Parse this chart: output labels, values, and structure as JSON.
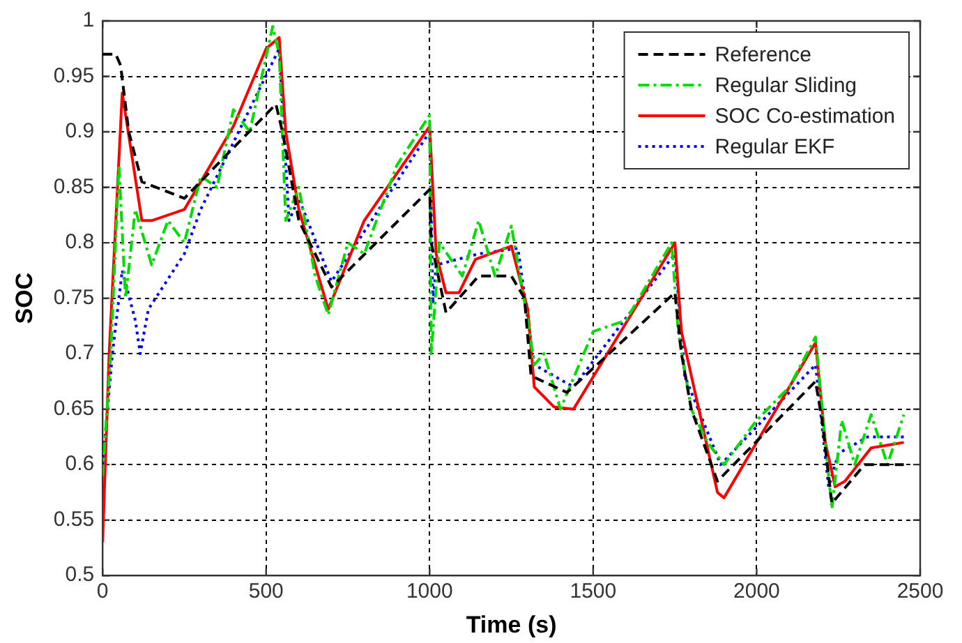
{
  "chart_data": {
    "type": "line",
    "xlabel": "Time (s)",
    "ylabel": "SOC",
    "xlim": [
      0,
      2500
    ],
    "xticks": [
      0,
      500,
      1000,
      1500,
      2000,
      2500
    ],
    "ylim": [
      0.5,
      1
    ],
    "yticks": [
      0.5,
      0.55,
      0.6,
      0.65,
      0.7,
      0.75,
      0.8,
      0.85,
      0.9,
      0.95,
      1
    ],
    "grid": true,
    "legend": "top right",
    "marker": "none",
    "series": [
      {
        "name": "Reference",
        "color": "#000000",
        "line_style": "dashed",
        "x": [
          0,
          40,
          55,
          80,
          120,
          250,
          530,
          550,
          600,
          700,
          1000,
          1005,
          1050,
          1150,
          1250,
          1290,
          1310,
          1420,
          1750,
          1770,
          1800,
          1880,
          2180,
          2200,
          2230,
          2330,
          2450
        ],
        "values": [
          0.97,
          0.97,
          0.96,
          0.9,
          0.855,
          0.84,
          0.925,
          0.9,
          0.82,
          0.76,
          0.848,
          0.8,
          0.737,
          0.77,
          0.77,
          0.75,
          0.68,
          0.665,
          0.755,
          0.7,
          0.65,
          0.585,
          0.675,
          0.64,
          0.565,
          0.6,
          0.6
        ]
      },
      {
        "name": "Regular Sliding",
        "color": "#00dd00",
        "line_style": "dashdot",
        "x": [
          0,
          25,
          50,
          70,
          100,
          150,
          200,
          250,
          300,
          350,
          400,
          450,
          520,
          540,
          560,
          600,
          650,
          690,
          750,
          800,
          900,
          1000,
          1005,
          1030,
          1100,
          1150,
          1200,
          1250,
          1300,
          1320,
          1350,
          1400,
          1500,
          1600,
          1700,
          1740,
          1760,
          1800,
          1850,
          1900,
          2000,
          2100,
          2180,
          2210,
          2230,
          2260,
          2300,
          2350,
          2400,
          2450
        ],
        "values": [
          0.59,
          0.7,
          0.87,
          0.75,
          0.83,
          0.78,
          0.82,
          0.8,
          0.86,
          0.85,
          0.92,
          0.9,
          0.995,
          0.97,
          0.82,
          0.85,
          0.77,
          0.735,
          0.8,
          0.79,
          0.87,
          0.915,
          0.7,
          0.8,
          0.77,
          0.82,
          0.77,
          0.815,
          0.73,
          0.69,
          0.7,
          0.65,
          0.72,
          0.73,
          0.78,
          0.8,
          0.72,
          0.65,
          0.62,
          0.6,
          0.64,
          0.67,
          0.715,
          0.62,
          0.56,
          0.64,
          0.6,
          0.645,
          0.6,
          0.645
        ]
      },
      {
        "name": "SOC Co-estimation",
        "color": "#ff0000",
        "line_style": "solid",
        "x": [
          0,
          20,
          60,
          120,
          150,
          250,
          400,
          500,
          540,
          560,
          600,
          690,
          800,
          1000,
          1020,
          1050,
          1090,
          1140,
          1250,
          1300,
          1320,
          1380,
          1440,
          1750,
          1770,
          1880,
          1900,
          2180,
          2210,
          2240,
          2270,
          2350,
          2450
        ],
        "values": [
          0.53,
          0.7,
          0.935,
          0.82,
          0.82,
          0.83,
          0.905,
          0.975,
          0.985,
          0.9,
          0.83,
          0.74,
          0.82,
          0.905,
          0.79,
          0.755,
          0.755,
          0.785,
          0.797,
          0.74,
          0.67,
          0.652,
          0.65,
          0.8,
          0.72,
          0.575,
          0.57,
          0.71,
          0.62,
          0.58,
          0.585,
          0.615,
          0.62
        ]
      },
      {
        "name": "Regular EKF",
        "color": "#0000ff",
        "line_style": "dotted",
        "x": [
          0,
          30,
          60,
          100,
          115,
          140,
          250,
          300,
          540,
          570,
          600,
          700,
          1000,
          1010,
          1020,
          1150,
          1270,
          1320,
          1440,
          1750,
          1780,
          1890,
          2180,
          2220,
          2250,
          2340,
          2450
        ],
        "values": [
          0.6,
          0.7,
          0.775,
          0.73,
          0.7,
          0.74,
          0.79,
          0.83,
          0.975,
          0.82,
          0.84,
          0.765,
          0.9,
          0.745,
          0.78,
          0.79,
          0.795,
          0.69,
          0.67,
          0.79,
          0.68,
          0.6,
          0.69,
          0.58,
          0.61,
          0.625,
          0.625
        ]
      }
    ]
  }
}
